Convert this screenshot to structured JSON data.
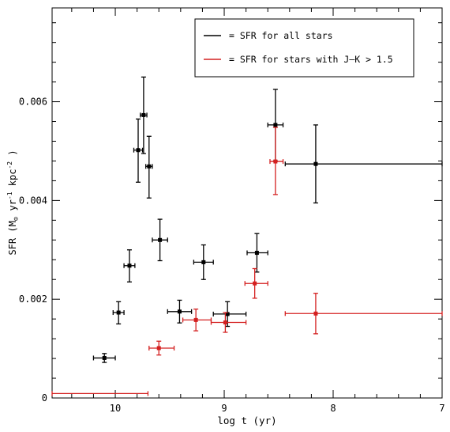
{
  "chart_data": {
    "type": "scatter",
    "xlabel": "log t (yr)",
    "ylabel": "SFR (M",
    "ylabel_sub": "⊙",
    "ylabel_tail": " yr",
    "ylabel_exp1": "-1",
    "ylabel_mid": " kpc",
    "ylabel_exp2": "-2",
    "ylabel_end": " )",
    "xlim": [
      10.58,
      7.0
    ],
    "ylim": [
      0,
      0.0079
    ],
    "x_ticks": [
      {
        "value": 10,
        "label": "10"
      },
      {
        "value": 9,
        "label": "9"
      },
      {
        "value": 8,
        "label": "8"
      },
      {
        "value": 7,
        "label": "7"
      }
    ],
    "y_ticks": [
      {
        "value": 0,
        "label": "0"
      },
      {
        "value": 0.002,
        "label": "0.002"
      },
      {
        "value": 0.004,
        "label": "0.004"
      },
      {
        "value": 0.006,
        "label": "0.006"
      }
    ],
    "legend_position": "top-right",
    "series": [
      {
        "name": "= SFR for all stars",
        "color": "#000000",
        "points": [
          {
            "x": 10.1,
            "y": 0.00081,
            "xl": 10.2,
            "xh": 10.0,
            "yl": 0.00072,
            "yh": 0.0009
          },
          {
            "x": 9.97,
            "y": 0.00173,
            "xl": 10.02,
            "xh": 9.92,
            "yl": 0.0015,
            "yh": 0.00195
          },
          {
            "x": 9.87,
            "y": 0.00268,
            "xl": 9.92,
            "xh": 9.82,
            "yl": 0.00235,
            "yh": 0.003
          },
          {
            "x": 9.79,
            "y": 0.00502,
            "xl": 9.83,
            "xh": 9.75,
            "yl": 0.00437,
            "yh": 0.00565
          },
          {
            "x": 9.74,
            "y": 0.00573,
            "xl": 9.77,
            "xh": 9.71,
            "yl": 0.00495,
            "yh": 0.0065
          },
          {
            "x": 9.69,
            "y": 0.00469,
            "xl": 9.72,
            "xh": 9.66,
            "yl": 0.00405,
            "yh": 0.0053
          },
          {
            "x": 9.59,
            "y": 0.0032,
            "xl": 9.66,
            "xh": 9.52,
            "yl": 0.00278,
            "yh": 0.00362
          },
          {
            "x": 9.41,
            "y": 0.00175,
            "xl": 9.52,
            "xh": 9.3,
            "yl": 0.00152,
            "yh": 0.00198
          },
          {
            "x": 9.19,
            "y": 0.00275,
            "xl": 9.28,
            "xh": 9.1,
            "yl": 0.0024,
            "yh": 0.0031
          },
          {
            "x": 8.97,
            "y": 0.0017,
            "xl": 9.1,
            "xh": 8.8,
            "yl": 0.00145,
            "yh": 0.00195
          },
          {
            "x": 8.7,
            "y": 0.00294,
            "xl": 8.79,
            "xh": 8.6,
            "yl": 0.00255,
            "yh": 0.00333
          },
          {
            "x": 8.53,
            "y": 0.00553,
            "xl": 8.6,
            "xh": 8.46,
            "yl": 0.0048,
            "yh": 0.00625
          },
          {
            "x": 8.16,
            "y": 0.00474,
            "xl": 8.44,
            "xh": 7.0,
            "yl": 0.00395,
            "yh": 0.00553
          }
        ]
      },
      {
        "name": "= SFR for stars with J–K > 1.5",
        "color": "#d42020",
        "points": [
          {
            "x": 9.6,
            "y": 0.00101,
            "xl": 9.69,
            "xh": 9.46,
            "yl": 0.00087,
            "yh": 0.00115
          },
          {
            "x": 9.26,
            "y": 0.00158,
            "xl": 9.38,
            "xh": 9.12,
            "yl": 0.00136,
            "yh": 0.0018
          },
          {
            "x": 8.99,
            "y": 0.00153,
            "xl": 9.12,
            "xh": 8.8,
            "yl": 0.00133,
            "yh": 0.00173
          },
          {
            "x": 8.72,
            "y": 0.00232,
            "xl": 8.81,
            "xh": 8.6,
            "yl": 0.00202,
            "yh": 0.00262
          },
          {
            "x": 8.53,
            "y": 0.00479,
            "xl": 8.58,
            "xh": 8.46,
            "yl": 0.00412,
            "yh": 0.00548
          },
          {
            "x": 8.16,
            "y": 0.00171,
            "xl": 8.44,
            "xh": 7.0,
            "yl": 0.0013,
            "yh": 0.00212
          },
          {
            "x": 10.4,
            "y": 9e-05,
            "xl": 10.58,
            "xh": 9.7,
            "yl": 9e-05,
            "yh": 9e-05
          }
        ]
      }
    ]
  }
}
